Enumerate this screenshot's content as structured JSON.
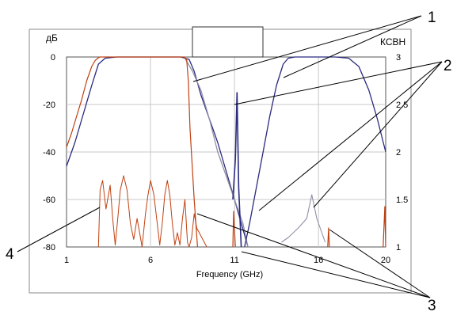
{
  "chart_data": {
    "type": "line",
    "xlabel": "Frequency (GHz)",
    "ylabel_left": "дБ",
    "ylabel_right": "КСВН",
    "x_ticks": [
      "1",
      "6",
      "11",
      "16",
      "20"
    ],
    "y_left_ticks": [
      "0",
      "-20",
      "-40",
      "-60",
      "-80"
    ],
    "y_right_ticks": [
      "3",
      "2.5",
      "2",
      "1.5",
      "1"
    ],
    "xlim": [
      1,
      20
    ],
    "ylim_left": [
      -80,
      0
    ],
    "ylim_right": [
      1,
      3
    ],
    "grid": true,
    "callout_labels": [
      "1",
      "2",
      "3",
      "4"
    ],
    "colors": {
      "filter1_sparam": "#2a2a80",
      "filter1_vswr": "#9090a8",
      "filter2_sparam": "#c04010",
      "filter2_vswr": "#c04010",
      "grid": "#c8c8c8",
      "plot_bg": "#ffffff",
      "outer_bg": "#ffffff"
    },
    "series": [
      {
        "key": "filter1_lowpass_sparam",
        "x": [
          1.0,
          1.5,
          2.0,
          2.5,
          2.9,
          3.3,
          4,
          5,
          6,
          7,
          7.8,
          8.3,
          8.6,
          9.0,
          9.5,
          10.0,
          10.5,
          11.0,
          11.4,
          11.8
        ],
        "y": [
          -46,
          -36,
          -24,
          -12,
          -3,
          -0.5,
          0,
          0,
          0,
          0,
          0,
          -1,
          -6,
          -16,
          -26,
          -36,
          -48,
          -60,
          -70,
          -80
        ]
      },
      {
        "key": "filter1_lowpass_vswr",
        "x": [
          8.0,
          8.5,
          9.0,
          9.5,
          10.0,
          10.5,
          11.0,
          11.5,
          11.8
        ],
        "y": [
          3.0,
          2.85,
          2.65,
          2.35,
          2.0,
          1.75,
          1.5,
          1.25,
          1.0
        ]
      },
      {
        "key": "filter1_highpass_sparam",
        "x": [
          11.6,
          11.9,
          12.3,
          12.7,
          13.1,
          13.5,
          13.9,
          14.2,
          14.6,
          15.0,
          16,
          17,
          17.8,
          18.4,
          19.0,
          19.5,
          20.0
        ],
        "y": [
          -80,
          -70,
          -55,
          -40,
          -25,
          -12,
          -3,
          -0.5,
          0,
          0,
          0,
          0,
          -0.5,
          -4,
          -14,
          -26,
          -40
        ]
      },
      {
        "key": "filter1_highpass_vswr",
        "x": [
          13.8,
          14.2,
          14.8,
          15.3,
          15.6,
          15.9,
          16.4
        ],
        "y": [
          1.05,
          1.1,
          1.2,
          1.3,
          1.55,
          1.3,
          1.05
        ]
      },
      {
        "key": "filter1_notch",
        "x": [
          10.9,
          11.05,
          11.15,
          11.25,
          11.4
        ],
        "y": [
          -60,
          -43,
          -15,
          -55,
          -80
        ]
      },
      {
        "key": "filter2_sparam",
        "x": [
          1.0,
          1.3,
          1.6,
          1.9,
          2.2,
          2.5,
          2.7,
          2.9,
          3.0,
          3.2,
          4,
          5,
          6,
          7,
          7.8,
          8.0,
          8.15,
          8.25,
          8.35,
          8.6,
          8.8
        ],
        "y": [
          -38,
          -32,
          -25,
          -18,
          -10,
          -4,
          -1.5,
          -0.3,
          0,
          0,
          0,
          0,
          0,
          0,
          0,
          0,
          -1,
          -10,
          -30,
          -60,
          -80
        ]
      },
      {
        "key": "filter2_vswr",
        "x": [
          2.9,
          3.0,
          3.15,
          3.25,
          3.35,
          3.5,
          3.6,
          3.75,
          3.9,
          4.05,
          4.2,
          4.4,
          4.6,
          4.8,
          5.0,
          5.2,
          5.35,
          5.5,
          5.7,
          5.85,
          6.0,
          6.2,
          6.4,
          6.55,
          6.7,
          6.85,
          7.0,
          7.15,
          7.3,
          7.45,
          7.6,
          7.75,
          7.9,
          8.05,
          8.2,
          8.3,
          8.45,
          8.6,
          8.75,
          8.9,
          9.05,
          9.2,
          9.35
        ],
        "y": [
          1.0,
          1.6,
          1.7,
          1.55,
          1.4,
          1.55,
          1.65,
          1.3,
          1.02,
          1.3,
          1.6,
          1.75,
          1.6,
          1.25,
          1.08,
          1.3,
          1.15,
          1.0,
          1.35,
          1.55,
          1.7,
          1.55,
          1.25,
          1.02,
          1.25,
          1.55,
          1.7,
          1.55,
          1.25,
          1.02,
          1.15,
          1.02,
          1.3,
          1.5,
          1.05,
          1.0,
          1.1,
          1.35,
          1.2,
          1.15,
          1.1,
          1.05,
          1.0
        ]
      },
      {
        "key": "filter2_spur_a",
        "x": [
          10.9,
          10.95,
          11.05
        ],
        "y": [
          -80,
          -65,
          -80
        ]
      },
      {
        "key": "filter2_spur_b",
        "x": [
          16.55,
          16.6,
          16.65
        ],
        "y": [
          -80,
          -72,
          -80
        ]
      },
      {
        "key": "filter2_spur_c",
        "x": [
          19.85,
          19.95,
          20.0
        ],
        "y": [
          -80,
          -63,
          -80
        ]
      }
    ]
  }
}
